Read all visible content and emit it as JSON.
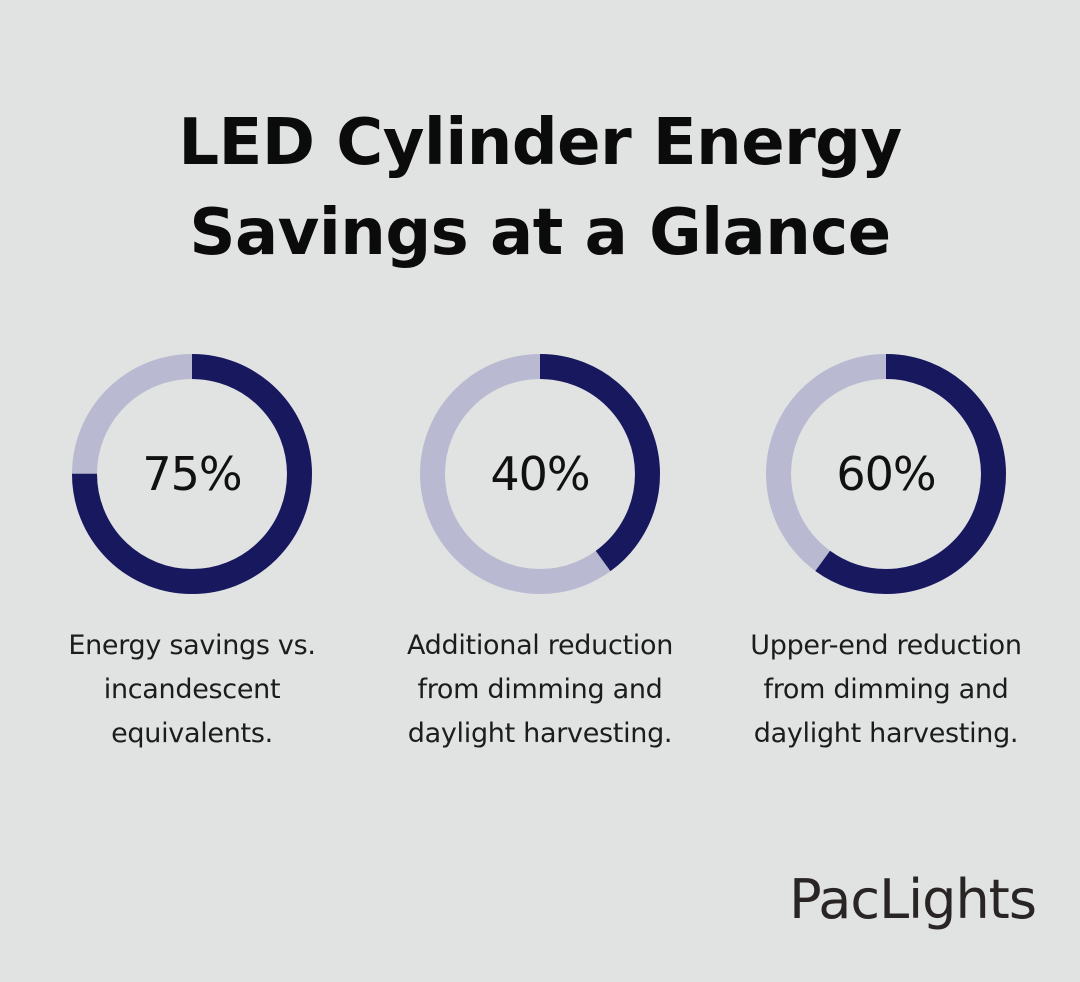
{
  "title": {
    "line1": "LED Cylinder Energy",
    "line2": "Savings at a Glance"
  },
  "colors": {
    "background": "#e1e2e2",
    "fill": "#17185e",
    "track": "#b9bad1"
  },
  "chart_data": {
    "type": "pie",
    "title": "LED Cylinder Energy Savings at a Glance",
    "charts": [
      {
        "value": 75,
        "value_label": "75%",
        "caption": [
          "Energy savings vs.",
          "incandescent",
          "equivalents."
        ]
      },
      {
        "value": 40,
        "value_label": "40%",
        "caption": [
          "Additional reduction",
          "from dimming and",
          "daylight harvesting."
        ]
      },
      {
        "value": 60,
        "value_label": "60%",
        "caption": [
          "Upper-end reduction",
          "from dimming and",
          "daylight harvesting."
        ]
      }
    ]
  },
  "brand": {
    "logo_text": "PacLights"
  }
}
